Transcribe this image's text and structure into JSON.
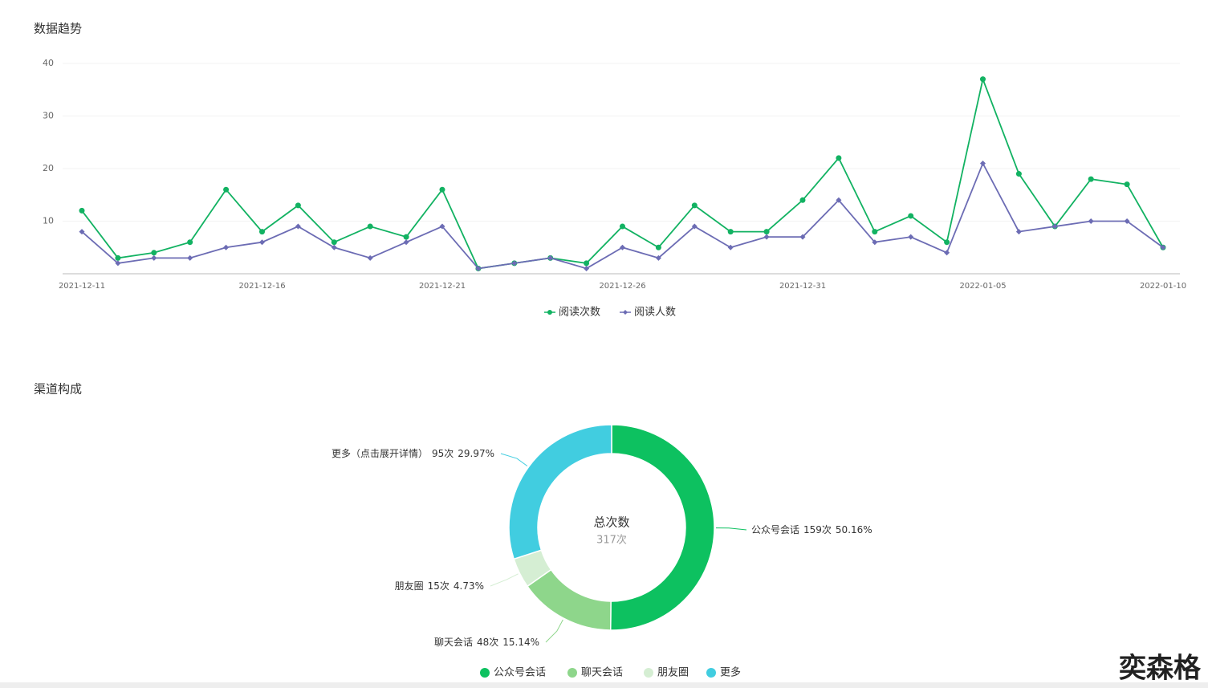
{
  "chart_data": [
    {
      "type": "line",
      "title": "数据趋势",
      "categories": [
        "2021-12-11",
        null,
        null,
        null,
        null,
        "2021-12-16",
        null,
        null,
        null,
        null,
        "2021-12-21",
        null,
        null,
        null,
        null,
        "2021-12-26",
        null,
        null,
        null,
        null,
        "2021-12-31",
        null,
        null,
        null,
        null,
        "2022-01-05",
        null,
        null,
        null,
        null,
        "2022-01-10"
      ],
      "series": [
        {
          "name": "阅读次数",
          "color": "#12b262",
          "values": [
            12,
            3,
            4,
            6,
            16,
            8,
            13,
            6,
            9,
            7,
            16,
            1,
            2,
            3,
            2,
            9,
            5,
            13,
            8,
            8,
            14,
            22,
            8,
            11,
            6,
            37,
            19,
            9,
            18,
            17,
            5
          ]
        },
        {
          "name": "阅读人数",
          "color": "#6c6cb4",
          "values": [
            8,
            2,
            3,
            3,
            5,
            6,
            9,
            5,
            3,
            6,
            9,
            1,
            2,
            3,
            1,
            5,
            3,
            9,
            5,
            7,
            7,
            14,
            6,
            7,
            4,
            21,
            8,
            9,
            10,
            10,
            5
          ]
        }
      ],
      "ylim": [
        0,
        40
      ],
      "yticks": [
        10,
        20,
        30,
        40
      ],
      "grid": true
    },
    {
      "type": "donut",
      "title": "渠道构成",
      "categories": [
        "公众号会话",
        "聊天会话",
        "朋友圈",
        "更多"
      ],
      "slice_labels": [
        "公众号会话",
        "聊天会话",
        "朋友圈",
        "更多（点击展开详情）"
      ],
      "values": [
        159,
        48,
        15,
        95
      ],
      "value_labels": [
        "159次",
        "48次",
        "15次",
        "95次"
      ],
      "percentages": [
        50.16,
        15.14,
        4.73,
        29.97
      ],
      "percentage_labels": [
        "50.16%",
        "15.14%",
        "4.73%",
        "29.97%"
      ],
      "colors": [
        "#0dc160",
        "#8ed68b",
        "#d5eed3",
        "#41cde0"
      ],
      "center_title": "总次数",
      "center_value": "317次"
    }
  ],
  "watermark": "奕森格"
}
